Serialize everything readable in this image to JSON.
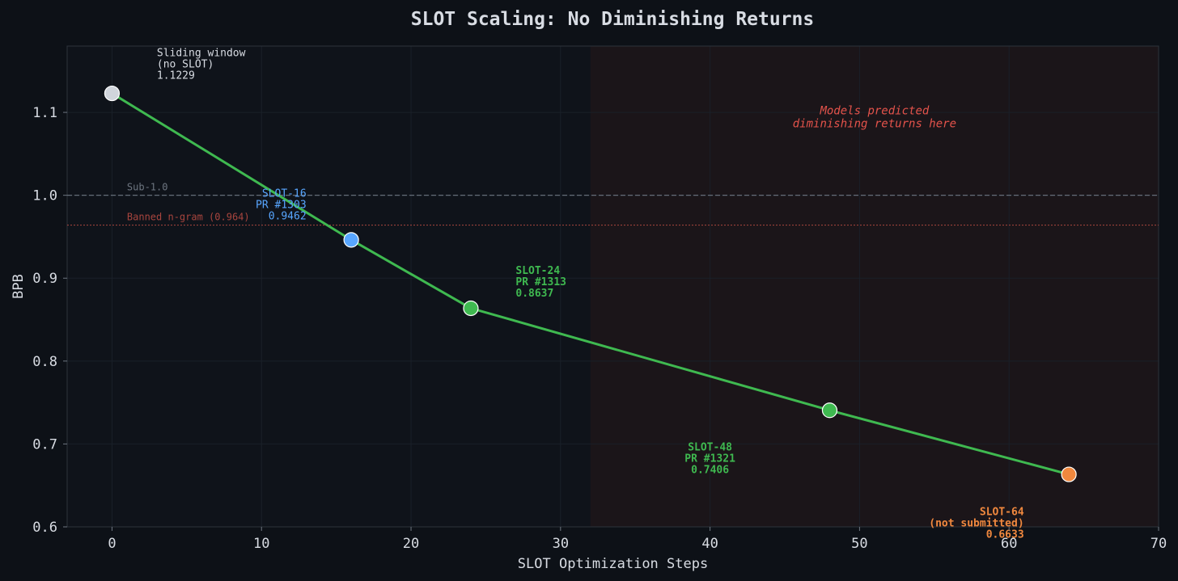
{
  "colors": {
    "figure_bg": "#0d1117",
    "axes_bg": "#0f131a",
    "shade": "#1b1519",
    "text": "#d8dce3",
    "muted": "#6e7681",
    "spine": "#2d333b",
    "grid": "#1a2029",
    "line": "#3fb950",
    "gray_point": "#d0d5dc",
    "blue": "#58a6ff",
    "green": "#3fb950",
    "orange": "#f0883e",
    "red": "#e5534b",
    "banned": "#a8453e"
  },
  "chart_data": {
    "type": "line",
    "title": "SLOT Scaling: No Diminishing Returns",
    "xlabel": "SLOT Optimization Steps",
    "ylabel": "BPB",
    "xlim": [
      -3,
      70
    ],
    "ylim": [
      0.6,
      1.18
    ],
    "xticks": [
      0,
      10,
      20,
      30,
      40,
      50,
      60,
      70
    ],
    "yticks": [
      0.6,
      0.7,
      0.8,
      0.9,
      1.0,
      1.1
    ],
    "ytick_labels": [
      "0.6",
      "0.7",
      "0.8",
      "0.9",
      "1.0",
      "1.1"
    ],
    "grid": true,
    "series": [
      {
        "x": [
          0,
          16,
          24,
          48,
          64
        ],
        "y": [
          1.1229,
          0.9462,
          0.8637,
          0.7406,
          0.6633
        ]
      }
    ],
    "points": [
      {
        "x": 0,
        "y": 1.1229,
        "color": "gray_point",
        "label": [
          "Sliding window",
          "(no SLOT)",
          "1.1229"
        ],
        "label_x": 3,
        "label_y": 1.168,
        "anchor": "start",
        "bold": false,
        "label_color": "text"
      },
      {
        "x": 16,
        "y": 0.9462,
        "color": "blue",
        "label": [
          "SLOT-16",
          "PR #1303",
          "0.9462"
        ],
        "label_x": 13,
        "label_y": 0.998,
        "anchor": "end",
        "bold": false,
        "label_color": "blue"
      },
      {
        "x": 24,
        "y": 0.8637,
        "color": "green",
        "label": [
          "SLOT-24",
          "PR #1313",
          "0.8637"
        ],
        "label_x": 27,
        "label_y": 0.905,
        "anchor": "start",
        "bold": true,
        "label_color": "green"
      },
      {
        "x": 48,
        "y": 0.7406,
        "color": "green",
        "label": [
          "SLOT-48",
          "PR #1321",
          "0.7406"
        ],
        "label_x": 40,
        "label_y": 0.692,
        "anchor": "middle",
        "bold": true,
        "label_color": "green"
      },
      {
        "x": 64,
        "y": 0.6633,
        "color": "orange",
        "label": [
          "SLOT-64",
          "(not submitted)",
          "0.6633"
        ],
        "label_x": 61,
        "label_y": 0.614,
        "anchor": "end",
        "bold": true,
        "label_color": "orange"
      }
    ],
    "hlines": [
      {
        "y": 1.0,
        "label": "Sub-1.0",
        "color": "muted",
        "dash": "dashed",
        "label_x": 1
      },
      {
        "y": 0.964,
        "label": "Banned n-gram (0.964)",
        "color": "banned",
        "dash": "dotted",
        "label_x": 1
      }
    ],
    "shaded_region": {
      "x_start": 32,
      "x_end": 70
    },
    "annotation": {
      "lines": [
        "Models predicted",
        "diminishing returns here"
      ],
      "x": 51,
      "y": 1.09
    }
  }
}
